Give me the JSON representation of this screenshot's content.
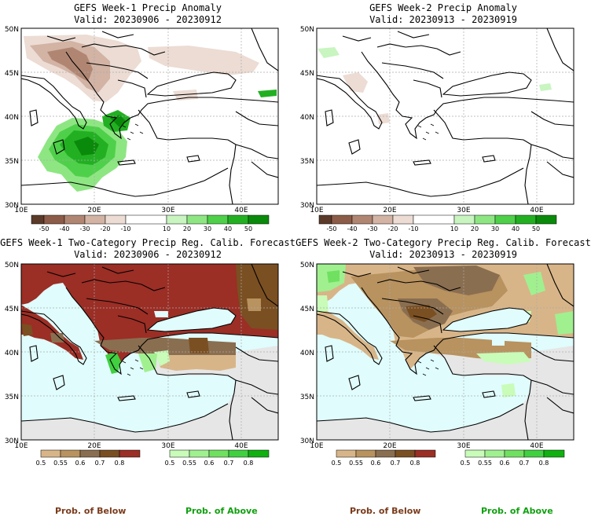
{
  "panels": [
    {
      "title": "GEFS Week-1 Precip Anomaly",
      "valid": "Valid: 20230906 - 20230912"
    },
    {
      "title": "GEFS Week-2 Precip Anomaly",
      "valid": "Valid: 20230913 - 20230919"
    },
    {
      "title": "GEFS Week-1 Two-Category Precip Reg. Calib. Forecast",
      "valid": "Valid: 20230906 - 20230912"
    },
    {
      "title": "GEFS Week-2 Two-Category Precip Reg. Calib. Forecast",
      "valid": "Valid: 20230913 - 20230919"
    }
  ],
  "axes": {
    "lat_labels": [
      "50N",
      "45N",
      "40N",
      "35N",
      "30N"
    ],
    "lon_labels": [
      "10E",
      "20E",
      "30E",
      "40E"
    ]
  },
  "anomaly_colorbar": {
    "labels": [
      "-50",
      "-40",
      "-30",
      "-20",
      "-10",
      "10",
      "20",
      "30",
      "40",
      "50"
    ],
    "colors": [
      "#5c3a29",
      "#8c5c48",
      "#b08673",
      "#d2b3a4",
      "#ecdcd4",
      "#ffffff",
      "#c8f5c0",
      "#8ee683",
      "#4fd04a",
      "#22b022",
      "#0a8a0a"
    ]
  },
  "prob_colorbars": {
    "below_labels": [
      "0.5",
      "0.55",
      "0.6",
      "0.7",
      "0.8"
    ],
    "below_colors": [
      "#d8b588",
      "#b8925f",
      "#8a6e50",
      "#7a4f22",
      "#9b2e25"
    ],
    "above_labels": [
      "0.5",
      "0.55",
      "0.6",
      "0.7",
      "0.8"
    ],
    "above_colors": [
      "#c8fcb8",
      "#a0f090",
      "#70e060",
      "#40d040",
      "#10b010"
    ]
  },
  "footer": {
    "below": "Prob. of Below",
    "above": "Prob. of Above",
    "below_color": "#7a3b1c",
    "above_color": "#10a010"
  },
  "map_colors": {
    "sea": "#e0fcfc",
    "land_nodata": "#e6e6e6",
    "coast": "#000000"
  }
}
